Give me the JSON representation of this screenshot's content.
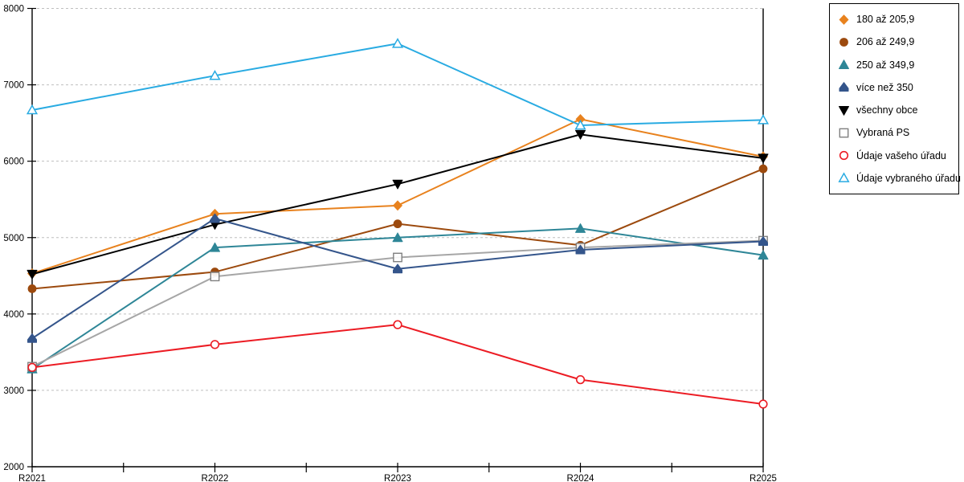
{
  "chart_data": {
    "type": "line",
    "title": "",
    "xlabel": "",
    "ylabel": "",
    "categories": [
      "R2021",
      "R2022",
      "R2023",
      "R2024",
      "R2025"
    ],
    "ylim": [
      2000,
      8000
    ],
    "yticks": [
      2000,
      3000,
      4000,
      5000,
      6000,
      7000,
      8000
    ],
    "grid": "horizontal-dashed",
    "legend_position": "top-right-outside",
    "series": [
      {
        "name": "180 až 205,9",
        "color": "#E8821E",
        "marker": "diamond-filled",
        "values": [
          4530,
          5310,
          5420,
          6550,
          6060
        ]
      },
      {
        "name": "206 až 249,9",
        "color": "#9C4A0E",
        "marker": "circle-filled",
        "values": [
          4330,
          4550,
          5180,
          4900,
          5900
        ]
      },
      {
        "name": "250 až 349,9",
        "color": "#2E8697",
        "marker": "triangle-up-filled",
        "values": [
          3280,
          4870,
          5000,
          5120,
          4770
        ]
      },
      {
        "name": "více než 350",
        "color": "#34558B",
        "marker": "pentagon-filled",
        "values": [
          3680,
          5250,
          4590,
          4840,
          4950
        ]
      },
      {
        "name": "všechny obce",
        "color": "#000000",
        "marker": "triangle-down-filled",
        "values": [
          4520,
          5170,
          5700,
          6350,
          6040
        ]
      },
      {
        "name": "Vybraná PS",
        "color": "#A6A6A6",
        "marker": "square-open",
        "marker_stroke": "#7F7F7F",
        "values": [
          3310,
          4490,
          4740,
          4870,
          4960
        ]
      },
      {
        "name": "Údaje vašeho úřadu",
        "color": "#EC1C24",
        "marker": "circle-open",
        "values": [
          3300,
          3600,
          3860,
          3140,
          2820
        ]
      },
      {
        "name": "Údaje vybraného úřadu",
        "color": "#29ABE2",
        "marker": "triangle-up-open",
        "values": [
          6670,
          7120,
          7540,
          6470,
          6540
        ]
      }
    ]
  },
  "colors": {
    "axis": "#000000",
    "gridline": "#BFBFBF",
    "background": "#FFFFFF",
    "text": "#000000"
  }
}
